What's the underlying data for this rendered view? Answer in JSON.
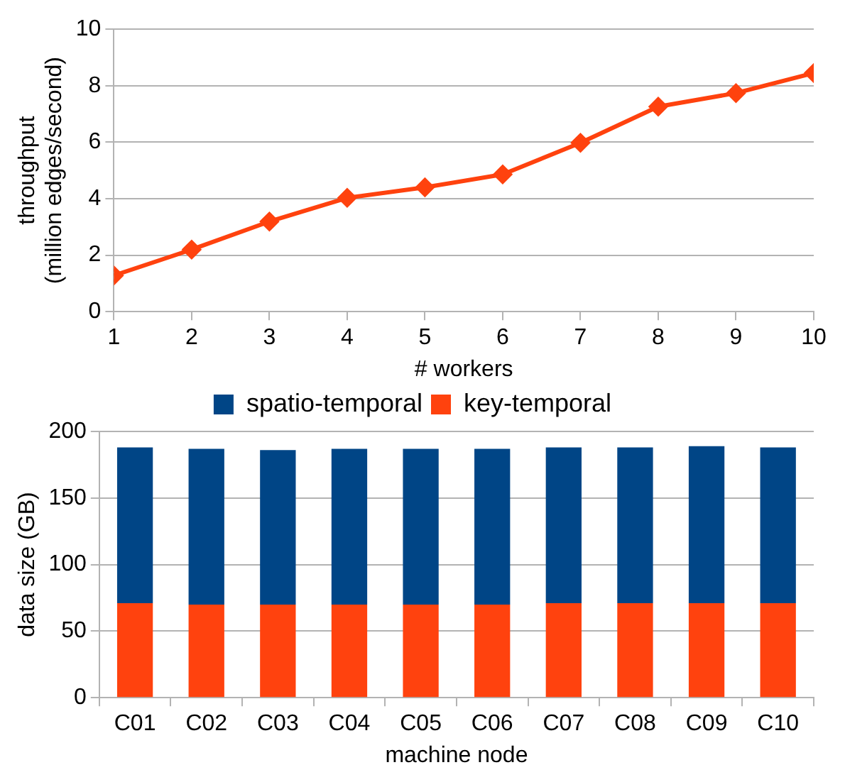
{
  "chart_data": [
    {
      "type": "line",
      "xlabel": "# workers",
      "ylabel": "throughput\n(million edges/second)",
      "x": [
        1,
        2,
        3,
        4,
        5,
        6,
        7,
        8,
        9,
        10
      ],
      "series": [
        {
          "color": "#ff420e",
          "values": [
            1.28,
            2.2,
            3.19,
            4.03,
            4.4,
            4.86,
            5.98,
            7.26,
            7.74,
            8.45
          ]
        }
      ],
      "xlim": [
        1,
        10
      ],
      "xticks": [
        1,
        2,
        3,
        4,
        5,
        6,
        7,
        8,
        9,
        10
      ],
      "ylim": [
        0,
        10
      ],
      "yticks": [
        0,
        2,
        4,
        6,
        8,
        10
      ],
      "grid": "y",
      "marker": "diamond",
      "legend": false
    },
    {
      "type": "bar",
      "stacked": true,
      "xlabel": "machine node",
      "ylabel": "data size (GB)",
      "categories": [
        "C01",
        "C02",
        "C03",
        "C04",
        "C05",
        "C06",
        "C07",
        "C08",
        "C09",
        "C10"
      ],
      "series": [
        {
          "name": "key-temporal",
          "color": "#ff420e",
          "values": [
            71,
            70,
            70,
            70,
            70,
            70,
            71,
            71,
            71,
            71
          ]
        },
        {
          "name": "spatio-temporal",
          "color": "#004586",
          "values": [
            117,
            117,
            116,
            117,
            117,
            117,
            117,
            117,
            118,
            117
          ]
        }
      ],
      "ylim": [
        0,
        200
      ],
      "yticks": [
        0,
        50,
        100,
        150,
        200
      ],
      "grid": "y",
      "legend": "top"
    }
  ]
}
